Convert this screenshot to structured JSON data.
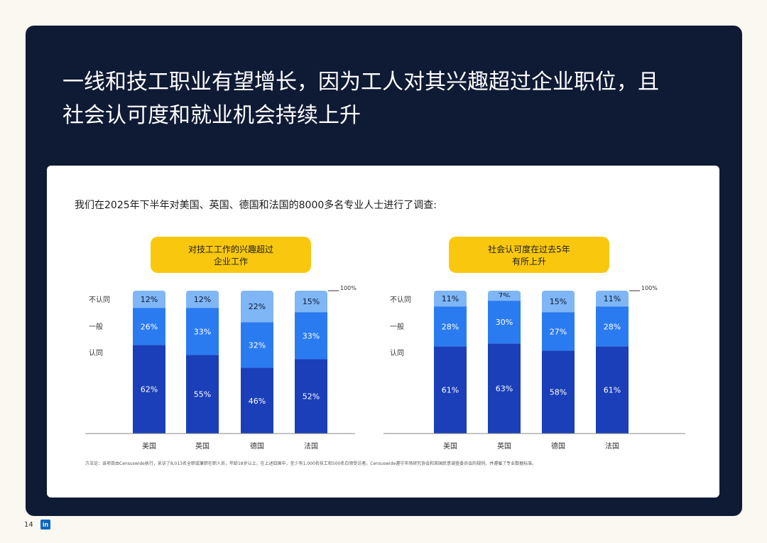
{
  "headline": {
    "line1": "一线和技工职业有望增长，因为工人对其兴趣超过企业职位，且",
    "line2": "社会认可度和就业机会持续上升"
  },
  "intro": "我们在2025年下半年对美国、英国、德国和法国的8000多名专业人士进行了调查:",
  "footer_note": "方法论：该项目由Censuswide执行，采访了8,013名全职或兼职在职人员，年龄18岁以上，在上述四国中，至少有1,000名技工和500名白领受访者。Censuswide遵守市场研究协会和英国民意调查委员会的规则，并遵循了专业数据标准。",
  "page_number": "14",
  "brand": {
    "logo_text": "in",
    "color": "#0a66c2"
  },
  "colors": {
    "panel": "#0f1a35",
    "agree": "#1a3fb8",
    "neutral": "#2b7bf0",
    "disagree": "#7fb6f5",
    "badge": "#f9c80e"
  },
  "chart_data": [
    {
      "type": "bar",
      "stacked": true,
      "title": "对技工工作的兴趣超过企业工作",
      "title_lines": [
        "对技工工作的兴趣超过",
        "企业工作"
      ],
      "categories": [
        "美国",
        "英国",
        "德国",
        "法国"
      ],
      "series": [
        {
          "name": "认同",
          "values": [
            62,
            55,
            46,
            52
          ]
        },
        {
          "name": "一般",
          "values": [
            26,
            33,
            32,
            33
          ]
        },
        {
          "name": "不认同",
          "values": [
            12,
            12,
            22,
            15
          ]
        }
      ],
      "ylim": [
        0,
        100
      ],
      "max_label": "100%"
    },
    {
      "type": "bar",
      "stacked": true,
      "title": "社会认可度在过去5年有所上升",
      "title_lines": [
        "社会认可度在过去5年",
        "有所上升"
      ],
      "categories": [
        "美国",
        "英国",
        "德国",
        "法国"
      ],
      "series": [
        {
          "name": "认同",
          "values": [
            61,
            63,
            58,
            61
          ]
        },
        {
          "name": "一般",
          "values": [
            28,
            30,
            27,
            28
          ]
        },
        {
          "name": "不认同",
          "values": [
            11,
            7,
            15,
            11
          ]
        }
      ],
      "ylim": [
        0,
        100
      ],
      "max_label": "100%"
    }
  ]
}
